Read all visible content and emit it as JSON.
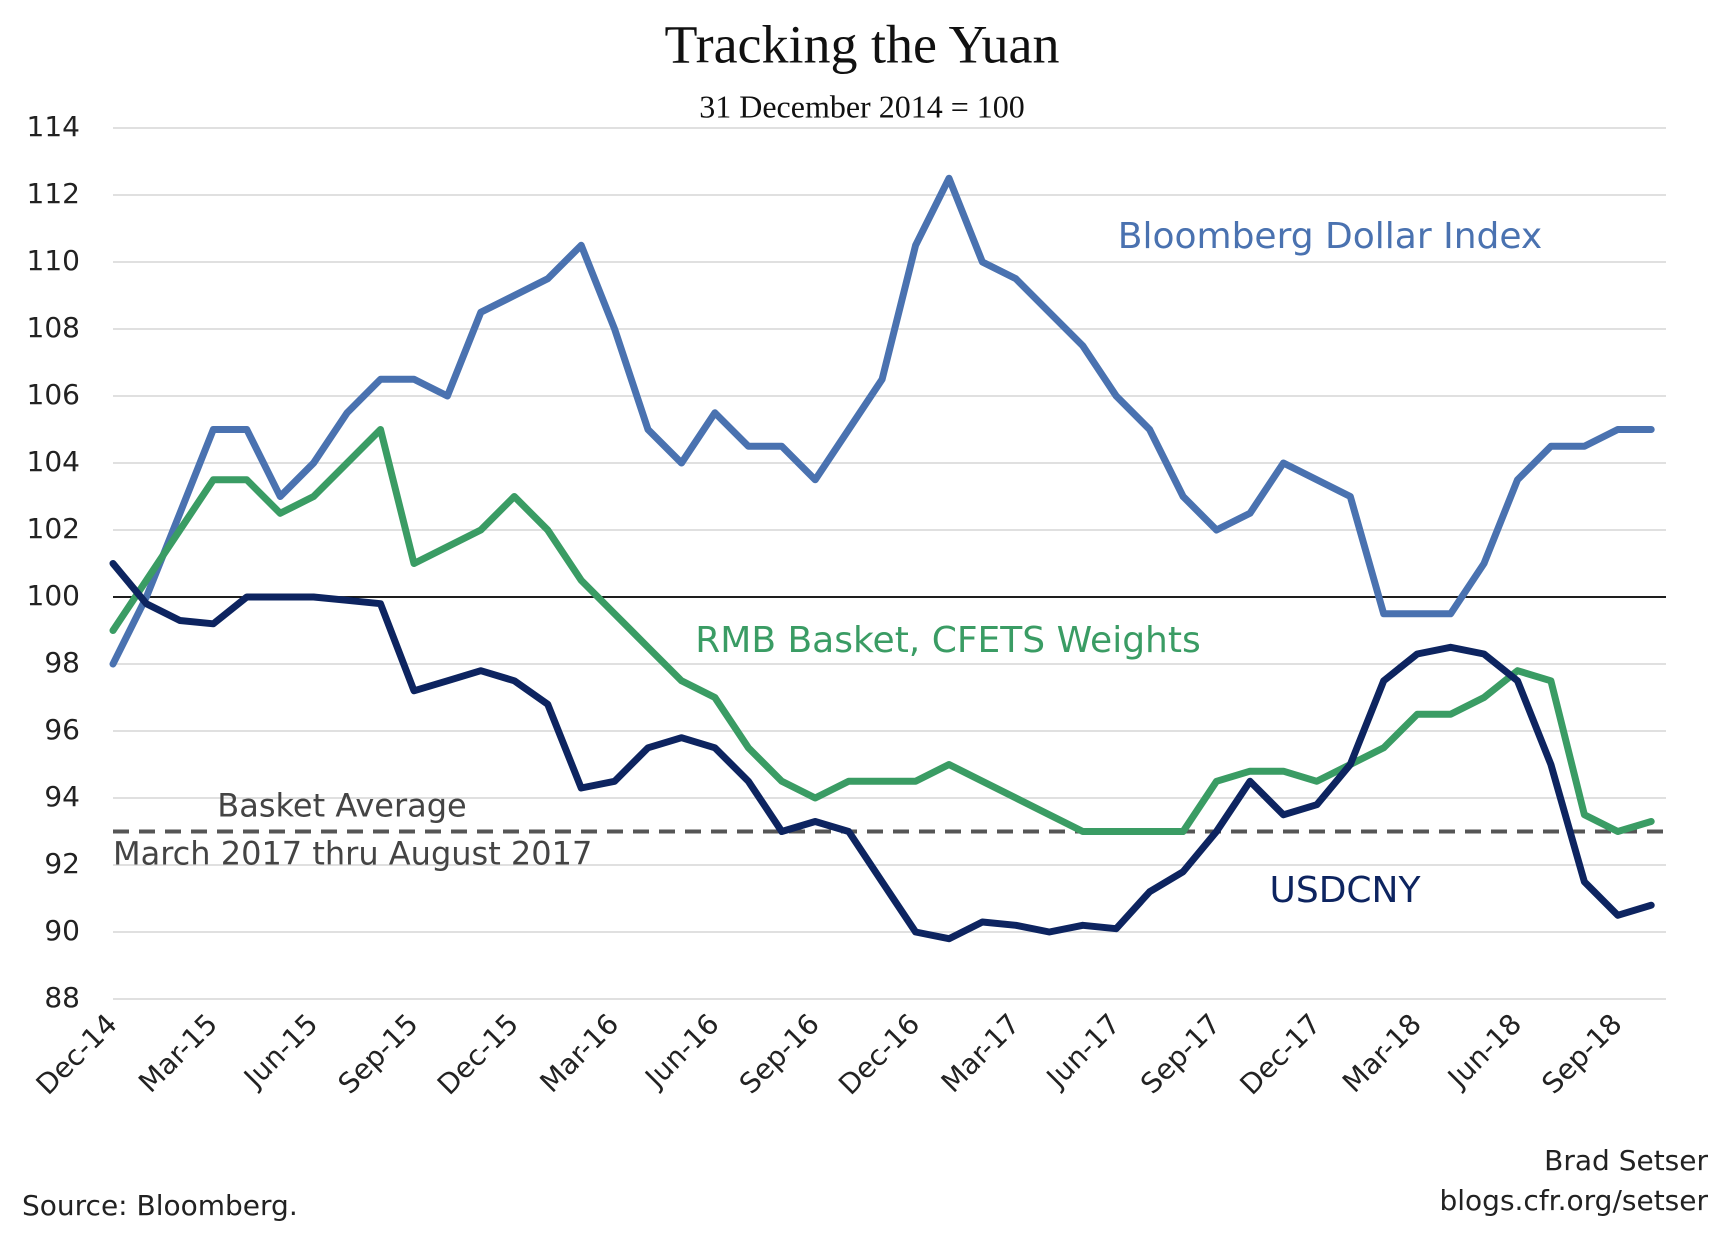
{
  "chart_data": {
    "type": "line",
    "title": "Tracking the Yuan",
    "subtitle": "31 December 2014 = 100",
    "x": [
      "Dec-14",
      null,
      null,
      "Mar-15",
      null,
      null,
      "Jun-15",
      null,
      null,
      "Sep-15",
      null,
      null,
      "Dec-15",
      null,
      null,
      "Mar-16",
      null,
      null,
      "Jun-16",
      null,
      null,
      "Sep-16",
      null,
      null,
      "Dec-16",
      null,
      null,
      "Mar-17",
      null,
      null,
      "Jun-17",
      null,
      null,
      "Sep-17",
      null,
      null,
      "Dec-17",
      null,
      null,
      "Mar-18",
      null,
      null,
      "Jun-18",
      null,
      null,
      "Sep-18",
      null
    ],
    "series": [
      {
        "name": "Bloomberg Dollar Index",
        "color": "#4a72b0",
        "values": [
          98,
          100,
          102.5,
          105,
          105,
          103,
          104,
          105.5,
          106.5,
          106.5,
          106,
          108.5,
          109,
          109.5,
          110.5,
          108,
          105,
          104,
          105.5,
          104.5,
          104.5,
          103.5,
          105,
          106.5,
          110.5,
          112.5,
          110,
          109.5,
          108.5,
          107.5,
          106,
          105,
          103,
          102,
          102.5,
          104,
          103.5,
          103,
          99.5,
          99.5,
          99.5,
          101,
          103.5,
          104.5,
          104.5,
          105,
          105
        ]
      },
      {
        "name": "RMB Basket, CFETS Weights",
        "color": "#3a9c64",
        "values": [
          99,
          100.5,
          102,
          103.5,
          103.5,
          102.5,
          103,
          104,
          105,
          101,
          101.5,
          102,
          103,
          102,
          100.5,
          99.5,
          98.5,
          97.5,
          97,
          95.5,
          94.5,
          94,
          94.5,
          94.5,
          94.5,
          95,
          94.5,
          94,
          93.5,
          93,
          93,
          93,
          93,
          94.5,
          94.8,
          94.8,
          94.5,
          95,
          95.5,
          96.5,
          96.5,
          97,
          97.8,
          97.5,
          93.5,
          93,
          93.3
        ]
      },
      {
        "name": "USDCNY",
        "color": "#0d2460",
        "values": [
          101,
          99.8,
          99.3,
          99.2,
          100,
          100,
          100,
          99.9,
          99.8,
          97.2,
          97.5,
          97.8,
          97.5,
          96.8,
          94.3,
          94.5,
          95.5,
          95.8,
          95.5,
          94.5,
          93,
          93.3,
          93,
          91.5,
          90,
          89.8,
          90.3,
          90.2,
          90,
          90.2,
          90.1,
          91.2,
          91.8,
          93,
          94.5,
          93.5,
          93.8,
          95,
          97.5,
          98.3,
          98.5,
          98.3,
          97.5,
          95,
          91.5,
          90.5,
          90.8
        ]
      }
    ],
    "hlines": [
      {
        "value": 100,
        "color": "#000000",
        "dashed": false
      },
      {
        "value": 93,
        "color": "#555555",
        "dashed": true,
        "label": [
          "Basket Average",
          "March 2017 thru August 2017"
        ]
      }
    ],
    "ylim": [
      88,
      114
    ],
    "yticks": [
      88,
      90,
      92,
      94,
      96,
      98,
      100,
      102,
      104,
      106,
      108,
      110,
      112,
      114
    ],
    "grid": true,
    "source": "Source: Bloomberg.",
    "credit": [
      "Brad Setser",
      "blogs.cfr.org/setser"
    ]
  }
}
